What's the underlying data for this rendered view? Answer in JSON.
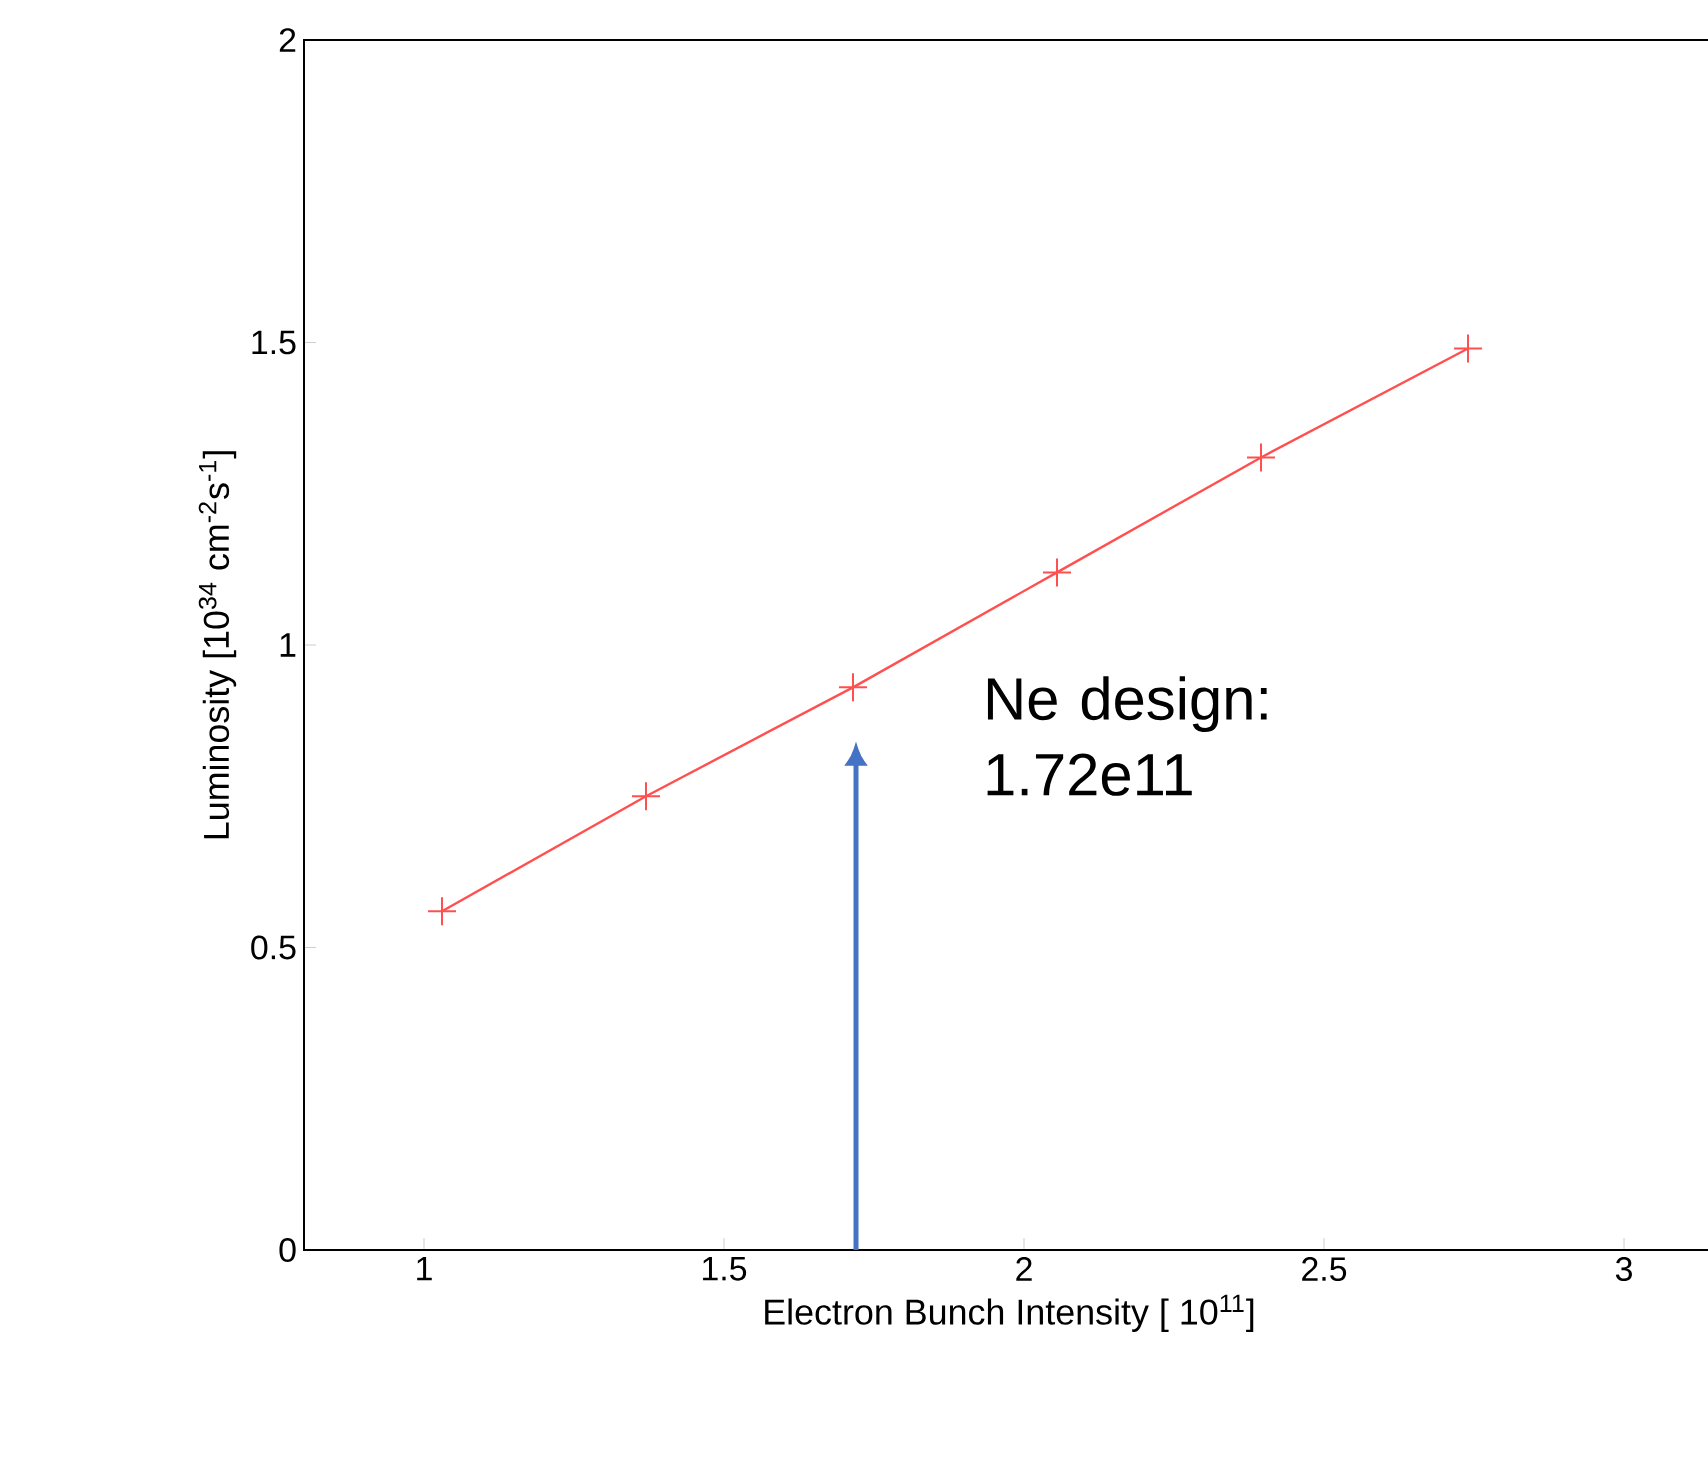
{
  "chart_data": {
    "type": "line",
    "xlabel": "Electron Bunch Intensity [ 10$^{11}$]",
    "ylabel": "Luminosity [10$^{34}$ cm$^{-2}$s$^{-1}$]",
    "x": [
      1.03,
      1.37,
      1.715,
      2.055,
      2.395,
      2.74
    ],
    "series": [
      {
        "color": "#ff5050",
        "values": [
          0.56,
          0.75,
          0.93,
          1.12,
          1.31,
          1.49
        ]
      }
    ],
    "marker": "cross",
    "line_style": "solid",
    "xlim": [
      0.8,
      3.15
    ],
    "xticks": [
      1,
      1.5,
      2,
      2.5,
      3
    ],
    "ylim": [
      0,
      2
    ],
    "yticks": [
      0,
      0.5,
      1,
      1.5,
      2
    ],
    "ref_lines": [
      {
        "axis": "x",
        "value": 1.72,
        "label": "Ne design: 1.72e11",
        "color": "#4472c4"
      }
    ]
  }
}
